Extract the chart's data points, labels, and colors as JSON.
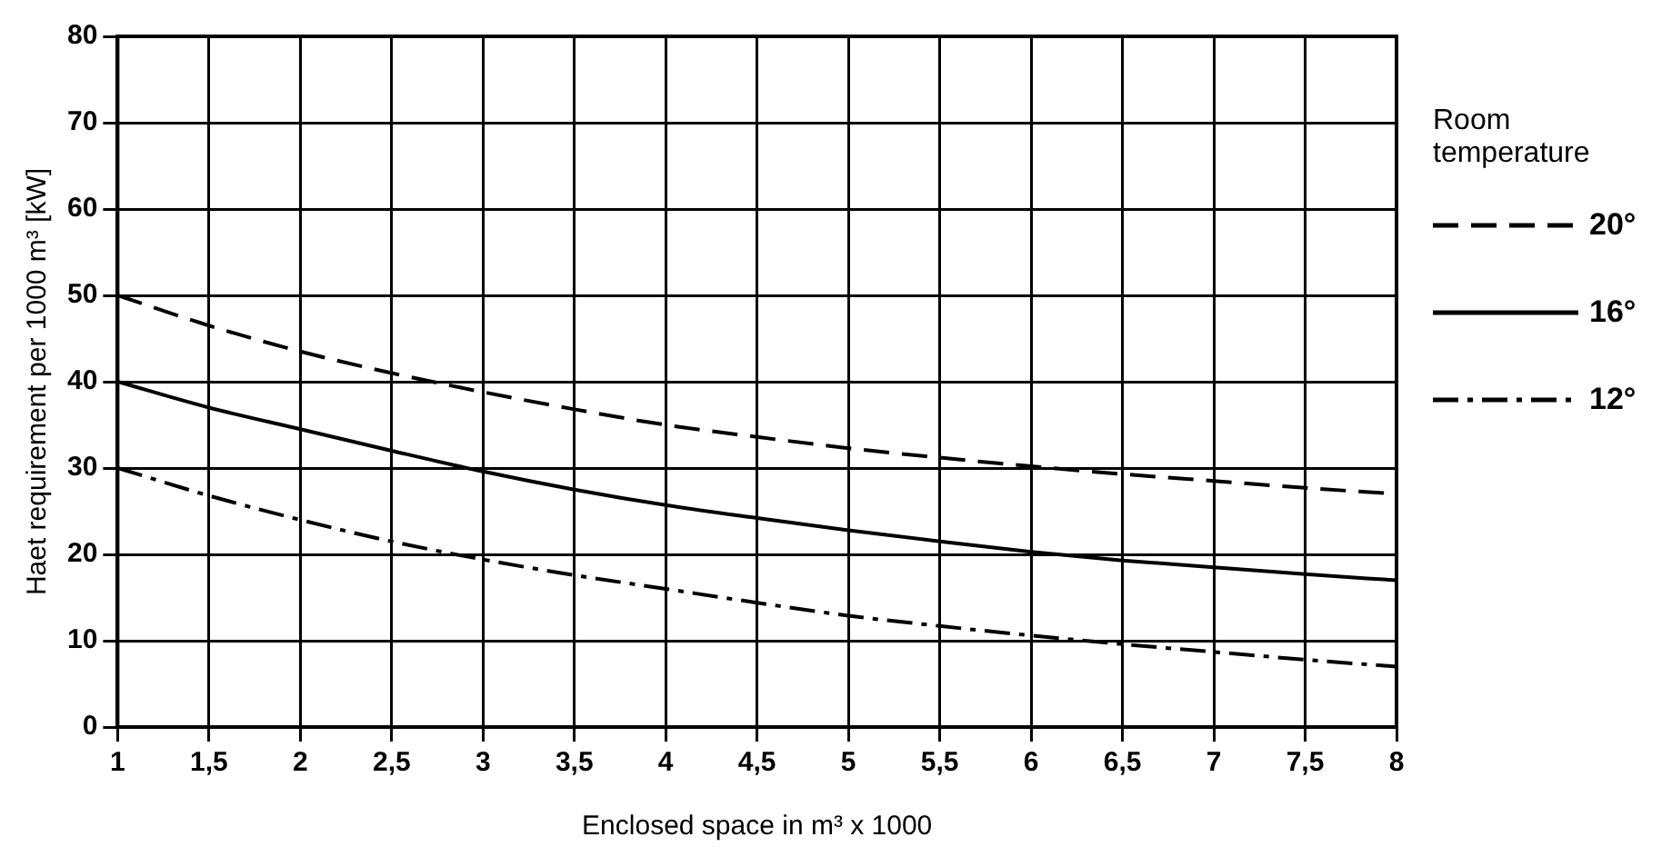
{
  "chart_data": {
    "type": "line",
    "xlabel": "Enclosed space in m³ x 1000",
    "ylabel": "Haet requirement per 1000 m³ [kW]",
    "legend_title": "Room temperature",
    "legend": "right",
    "grid": true,
    "marker": "none",
    "xlim": [
      1,
      8
    ],
    "ylim": [
      0,
      80
    ],
    "xticks": [
      1,
      {
        "value": 1.5,
        "label": "1,5"
      },
      2,
      {
        "value": 2.5,
        "label": "2,5"
      },
      3,
      {
        "value": 3.5,
        "label": "3,5"
      },
      4,
      {
        "value": 4.5,
        "label": "4,5"
      },
      5,
      {
        "value": 5.5,
        "label": "5,5"
      },
      6,
      {
        "value": 6.5,
        "label": "6,5"
      },
      7,
      {
        "value": 7.5,
        "label": "7,5"
      },
      8
    ],
    "yticks": [
      0,
      10,
      20,
      30,
      40,
      50,
      60,
      70,
      80
    ],
    "x": [
      1,
      1.5,
      2,
      2.5,
      3,
      3.5,
      4,
      4.5,
      5,
      5.5,
      6,
      6.5,
      7,
      7.5,
      8
    ],
    "series": [
      {
        "name": "20°",
        "color": "#000000",
        "line_style": "dashed",
        "values": [
          50,
          46.5,
          43.5,
          41,
          38.8,
          36.8,
          35,
          33.6,
          32.3,
          31.2,
          30.2,
          29.3,
          28.5,
          27.7,
          27
        ]
      },
      {
        "name": "16°",
        "color": "#000000",
        "line_style": "solid",
        "values": [
          40,
          37,
          34.5,
          32,
          29.6,
          27.5,
          25.7,
          24.2,
          22.8,
          21.5,
          20.3,
          19.3,
          18.5,
          17.7,
          17
        ]
      },
      {
        "name": "12°",
        "color": "#000000",
        "line_style": "dashdot",
        "values": [
          30,
          26.8,
          24,
          21.5,
          19.4,
          17.6,
          16,
          14.4,
          12.9,
          11.7,
          10.6,
          9.6,
          8.7,
          7.8,
          7
        ]
      }
    ]
  }
}
